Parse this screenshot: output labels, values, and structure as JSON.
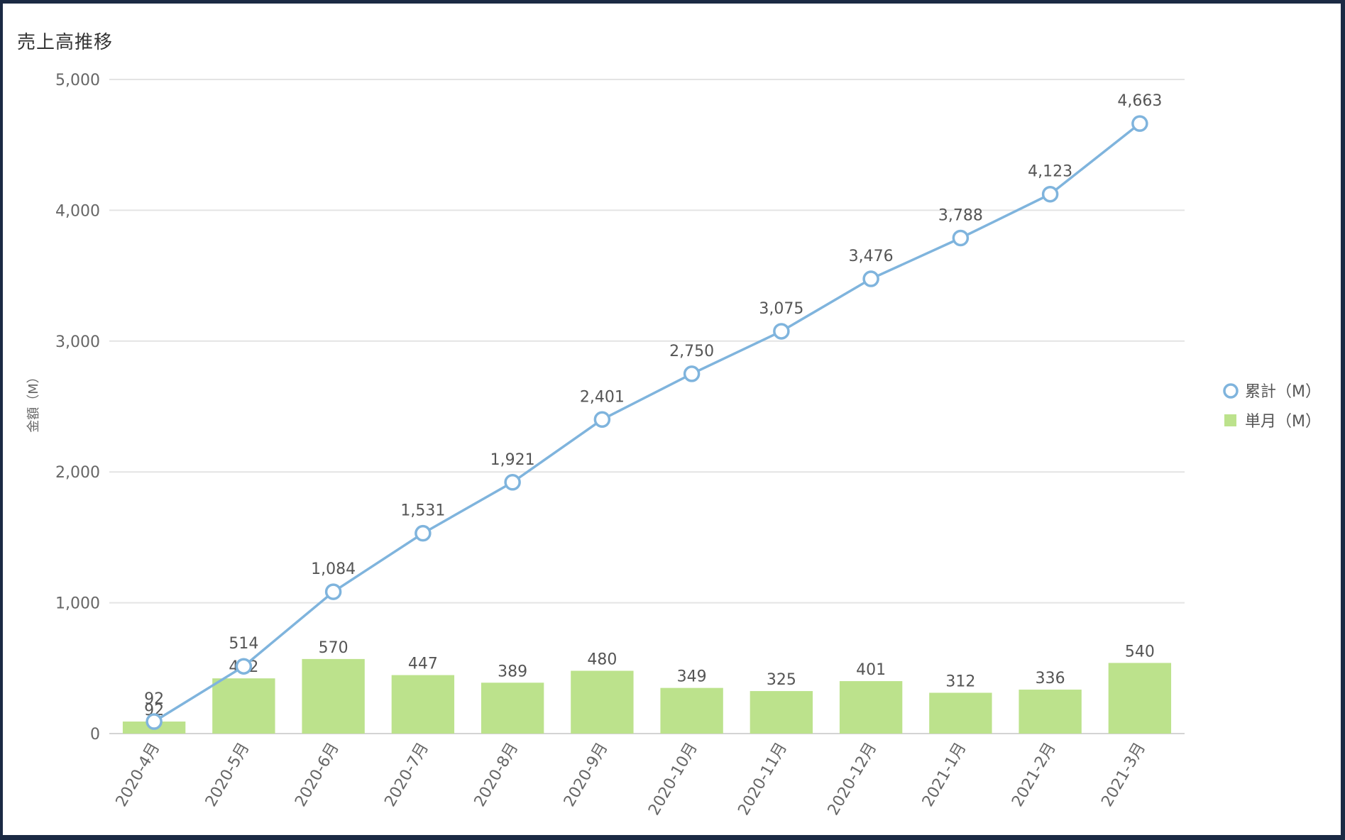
{
  "chart_data": {
    "type": "bar",
    "title": "売上高推移",
    "ylabel": "金額（M）",
    "xlabel": "",
    "ylim": [
      0,
      5000
    ],
    "y_ticks": [
      "0",
      "1,000",
      "2,000",
      "3,000",
      "4,000",
      "5,000"
    ],
    "grid": true,
    "legend_position": "right",
    "categories": [
      "2020-4月",
      "2020-5月",
      "2020-6月",
      "2020-7月",
      "2020-8月",
      "2020-9月",
      "2020-10月",
      "2020-11月",
      "2020-12月",
      "2021-1月",
      "2021-2月",
      "2021-3月"
    ],
    "series": [
      {
        "name": "累計（M）",
        "type": "line",
        "color": "#7fb4dd",
        "values": [
          92,
          514,
          1084,
          1531,
          1921,
          2401,
          2750,
          3075,
          3476,
          3788,
          4123,
          4663
        ],
        "labels": [
          "92",
          "514",
          "1,084",
          "1,531",
          "1,921",
          "2,401",
          "2,750",
          "3,075",
          "3,476",
          "3,788",
          "4,123",
          "4,663"
        ]
      },
      {
        "name": "単月（M）",
        "type": "bar",
        "color": "#bce28c",
        "values": [
          92,
          422,
          570,
          447,
          389,
          480,
          349,
          325,
          401,
          312,
          336,
          540
        ],
        "labels": [
          "92",
          "422",
          "570",
          "447",
          "389",
          "480",
          "349",
          "325",
          "401",
          "312",
          "336",
          "540"
        ]
      }
    ]
  }
}
